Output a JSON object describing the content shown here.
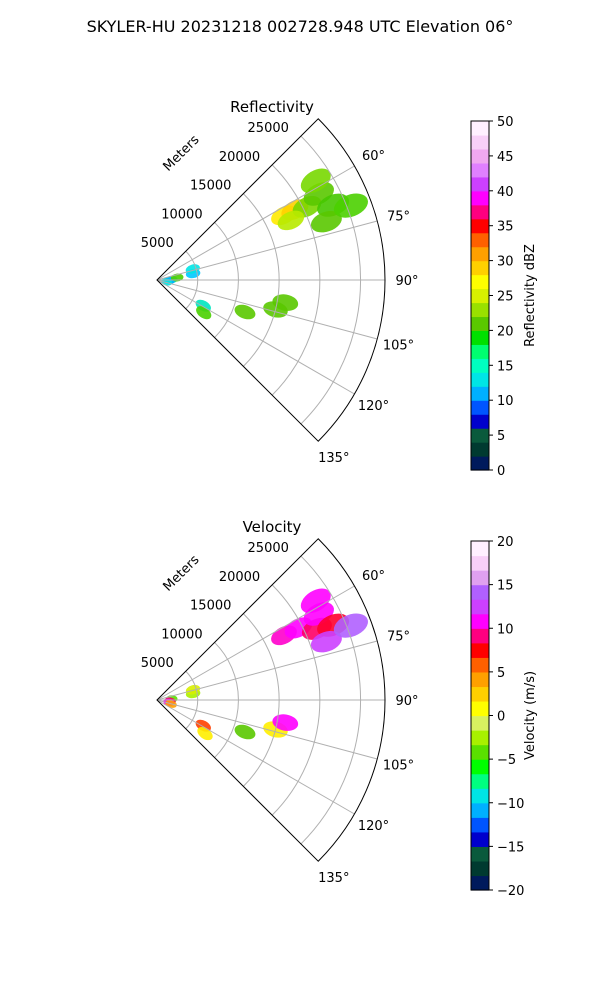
{
  "figure": {
    "title": "SKYLER-HU  20231218  002728.948 UTC Elevation 06°"
  },
  "chart_data": [
    {
      "type": "polar-sector",
      "title": "Reflectivity",
      "range_unit_label": "Meters",
      "theta_range_deg": [
        45,
        135
      ],
      "r_max": 28000,
      "range_ticks": [
        "5000",
        "10000",
        "15000",
        "20000",
        "25000"
      ],
      "range_tick_values": [
        5000,
        10000,
        15000,
        20000,
        25000
      ],
      "angle_ticks": [
        "60°",
        "75°",
        "90°",
        "105°",
        "120°",
        "135°"
      ],
      "angle_tick_values": [
        60,
        75,
        90,
        105,
        120,
        135
      ],
      "grid": true,
      "colorbar": {
        "label": "Reflectivity dBZ",
        "vmin": 0,
        "vmax": 50,
        "ticks": [
          "0",
          "5",
          "10",
          "15",
          "20",
          "25",
          "30",
          "35",
          "40",
          "45",
          "50"
        ],
        "colors": [
          "#001a5c",
          "#003a30",
          "#0a5a3c",
          "#0000cc",
          "#0055ff",
          "#00b0ff",
          "#00e5e5",
          "#00ffc0",
          "#00ff70",
          "#00e000",
          "#5ac800",
          "#9ae000",
          "#d8f000",
          "#ffff00",
          "#ffd000",
          "#ffa000",
          "#ff6000",
          "#ff0000",
          "#ff0080",
          "#ff00ff",
          "#cc40ff",
          "#e080ff",
          "#f0a8f0",
          "#f8d0f8",
          "#fff0ff"
        ]
      },
      "echo_regions": [
        {
          "az": 63,
          "r": 17500,
          "color": "#ffea00"
        },
        {
          "az": 63,
          "r": 19000,
          "color": "#ffd000"
        },
        {
          "az": 64,
          "r": 20500,
          "color": "#7ad600"
        },
        {
          "az": 62,
          "r": 22500,
          "color": "#5ac800"
        },
        {
          "az": 67,
          "r": 23500,
          "color": "#46c800"
        },
        {
          "az": 71,
          "r": 22000,
          "color": "#5ac800"
        },
        {
          "az": 58,
          "r": 23000,
          "color": "#78d800"
        },
        {
          "az": 69,
          "r": 25500,
          "color": "#4bd000"
        },
        {
          "az": 66,
          "r": 18000,
          "color": "#b8ea00"
        },
        {
          "az": 80,
          "r": 4500,
          "color": "#00c8ff"
        },
        {
          "az": 73,
          "r": 4600,
          "color": "#00e5e5"
        },
        {
          "az": 88,
          "r": 1800,
          "color": "#00e5c0"
        },
        {
          "az": 93,
          "r": 1500,
          "color": "#00b0ff"
        },
        {
          "az": 102,
          "r": 1200,
          "color": "#00e5e5"
        },
        {
          "az": 83,
          "r": 2500,
          "color": "#4ad000"
        },
        {
          "az": 119,
          "r": 6500,
          "color": "#00e5c0"
        },
        {
          "az": 125,
          "r": 7000,
          "color": "#4ad000"
        },
        {
          "az": 104,
          "r": 15000,
          "color": "#5ac800"
        },
        {
          "az": 100,
          "r": 16000,
          "color": "#5ac800"
        },
        {
          "az": 110,
          "r": 11500,
          "color": "#5ac800"
        }
      ]
    },
    {
      "type": "polar-sector",
      "title": "Velocity",
      "range_unit_label": "Meters",
      "theta_range_deg": [
        45,
        135
      ],
      "r_max": 28000,
      "range_ticks": [
        "5000",
        "10000",
        "15000",
        "20000",
        "25000"
      ],
      "range_tick_values": [
        5000,
        10000,
        15000,
        20000,
        25000
      ],
      "angle_ticks": [
        "60°",
        "75°",
        "90°",
        "105°",
        "120°",
        "135°"
      ],
      "angle_tick_values": [
        60,
        75,
        90,
        105,
        120,
        135
      ],
      "grid": true,
      "colorbar": {
        "label": "Velocity (m/s)",
        "vmin": -20,
        "vmax": 20,
        "ticks": [
          "−20",
          "−15",
          "−10",
          "−5",
          "0",
          "5",
          "10",
          "15",
          "20"
        ],
        "colors": [
          "#001a5c",
          "#003a30",
          "#0a5a3c",
          "#0000cc",
          "#0055ff",
          "#00b0ff",
          "#00e5e5",
          "#00ff80",
          "#00ff00",
          "#5ae000",
          "#a8f000",
          "#d8f060",
          "#ffff00",
          "#ffd000",
          "#ffa000",
          "#ff6000",
          "#ff0000",
          "#ff0080",
          "#ff00ff",
          "#cc40ff",
          "#b060ff",
          "#e0a0f0",
          "#f8d0f8",
          "#fff0ff"
        ]
      },
      "echo_regions": [
        {
          "az": 63,
          "r": 17500,
          "color": "#ff00cc"
        },
        {
          "az": 63,
          "r": 19500,
          "color": "#ff00ff"
        },
        {
          "az": 66,
          "r": 21500,
          "color": "#ff0066"
        },
        {
          "az": 62,
          "r": 22500,
          "color": "#ff00ff"
        },
        {
          "az": 67,
          "r": 23500,
          "color": "#ff0030"
        },
        {
          "az": 71,
          "r": 22000,
          "color": "#cc40ff"
        },
        {
          "az": 58,
          "r": 23000,
          "color": "#ff00ff"
        },
        {
          "az": 69,
          "r": 25500,
          "color": "#b060ff"
        },
        {
          "az": 80,
          "r": 4500,
          "color": "#a8f000"
        },
        {
          "az": 74,
          "r": 4600,
          "color": "#d8f000"
        },
        {
          "az": 86,
          "r": 1800,
          "color": "#5ae000"
        },
        {
          "az": 95,
          "r": 1600,
          "color": "#ff0060"
        },
        {
          "az": 101,
          "r": 1500,
          "color": "#ff00ff"
        },
        {
          "az": 106,
          "r": 1800,
          "color": "#ffa000"
        },
        {
          "az": 119,
          "r": 6500,
          "color": "#ff4000"
        },
        {
          "az": 125,
          "r": 7200,
          "color": "#ffee00"
        },
        {
          "az": 104,
          "r": 15000,
          "color": "#ffee00"
        },
        {
          "az": 100,
          "r": 16000,
          "color": "#ff00ff"
        },
        {
          "az": 110,
          "r": 11500,
          "color": "#5ac800"
        }
      ]
    }
  ]
}
